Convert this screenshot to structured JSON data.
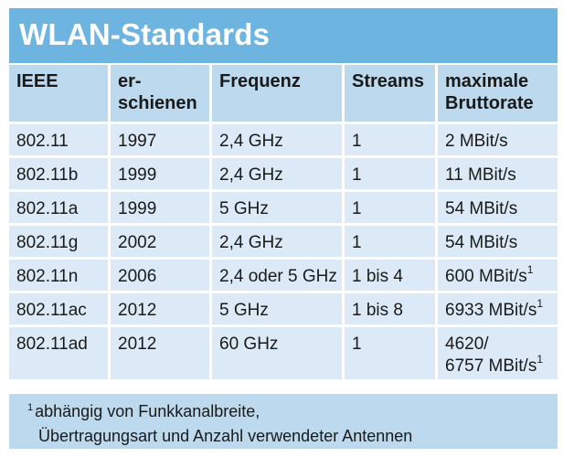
{
  "title": "WLAN-Standards",
  "table": {
    "headers": {
      "ieee": "IEEE",
      "erschienen_line1": "er-",
      "erschienen_line2": "schienen",
      "frequenz": "Frequenz",
      "streams": "Streams",
      "rate_line1": "maximale",
      "rate_line2": "Bruttorate"
    },
    "rows": [
      {
        "ieee": "802.11",
        "year": "1997",
        "freq": "2,4 GHz",
        "streams": "1",
        "rate": "2 MBit/s",
        "rate_sup": ""
      },
      {
        "ieee": "802.11b",
        "year": "1999",
        "freq": "2,4 GHz",
        "streams": "1",
        "rate": "11 MBit/s",
        "rate_sup": ""
      },
      {
        "ieee": "802.11a",
        "year": "1999",
        "freq": "5 GHz",
        "streams": "1",
        "rate": "54 MBit/s",
        "rate_sup": ""
      },
      {
        "ieee": "802.11g",
        "year": "2002",
        "freq": "2,4 GHz",
        "streams": "1",
        "rate": "54 MBit/s",
        "rate_sup": ""
      },
      {
        "ieee": "802.11n",
        "year": "2006",
        "freq": "2,4 oder 5 GHz",
        "streams": "1 bis 4",
        "rate": "600 MBit/s",
        "rate_sup": "1"
      },
      {
        "ieee": "802.11ac",
        "year": "2012",
        "freq": "5 GHz",
        "streams": "1 bis 8",
        "rate": "6933 MBit/s",
        "rate_sup": "1"
      }
    ],
    "last_row": {
      "ieee": "802.11ad",
      "year": "2012",
      "freq": "60 GHz",
      "streams": "1",
      "rate_line1": "4620/",
      "rate_line2": "6757 MBit/s",
      "rate_sup": "1"
    }
  },
  "footnote": {
    "marker": "1",
    "line1": "abhängig von Funkkanalbreite,",
    "line2": "Übertragungsart und Anzahl verwendeter Antennen"
  }
}
